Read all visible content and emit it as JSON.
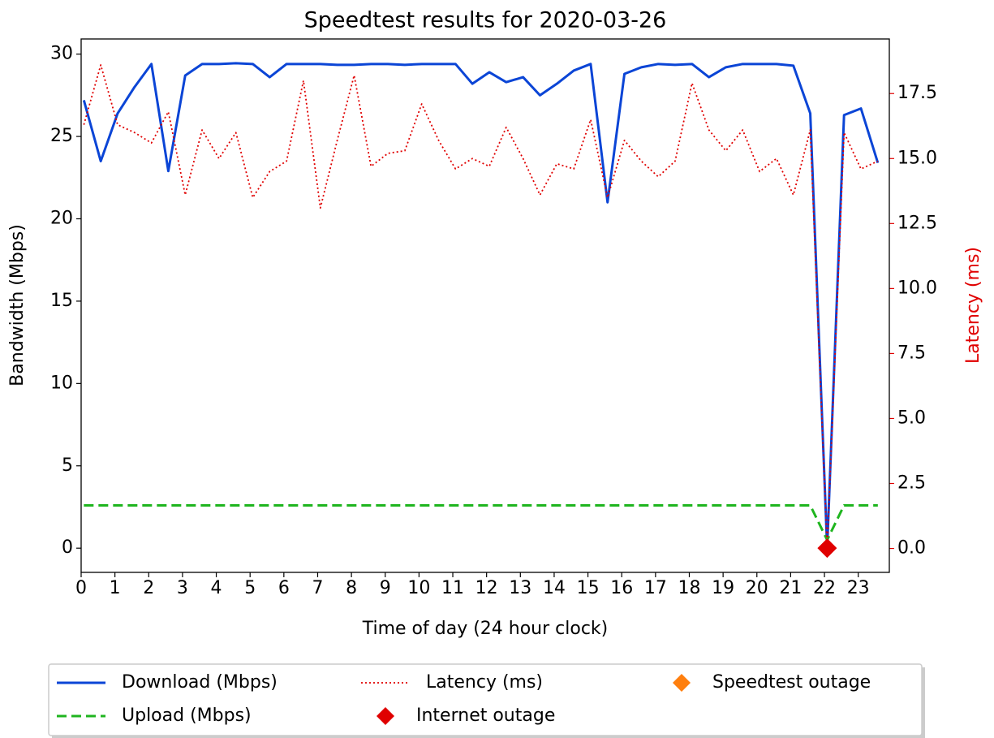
{
  "chart_data": {
    "type": "line",
    "title": "Speedtest results for 2020-03-26",
    "x_label": "Time of day (24 hour clock)",
    "y_label": "Bandwidth (Mbps)",
    "y2_label": "Latency (ms)",
    "y2_color": "#e00000",
    "x": [
      0.08,
      0.58,
      1.08,
      1.58,
      2.08,
      2.58,
      3.08,
      3.58,
      4.08,
      4.58,
      5.08,
      5.58,
      6.08,
      6.58,
      7.08,
      7.58,
      8.08,
      8.58,
      9.08,
      9.58,
      10.08,
      10.58,
      11.08,
      11.58,
      12.08,
      12.58,
      13.08,
      13.58,
      14.08,
      14.58,
      15.08,
      15.58,
      16.08,
      16.58,
      17.08,
      17.58,
      18.08,
      18.58,
      19.08,
      19.58,
      20.08,
      20.58,
      21.08,
      21.58,
      22.08,
      22.58,
      23.08,
      23.58
    ],
    "series": [
      {
        "name": "Download (Mbps)",
        "color": "#0b45d6",
        "linestyle": "solid",
        "values": [
          27.2,
          23.5,
          26.4,
          28.0,
          29.4,
          22.9,
          28.7,
          29.4,
          29.4,
          29.45,
          29.4,
          28.6,
          29.4,
          29.4,
          29.4,
          29.35,
          29.35,
          29.4,
          29.4,
          29.35,
          29.4,
          29.4,
          29.4,
          28.2,
          28.9,
          28.3,
          28.6,
          27.5,
          28.2,
          29.0,
          29.4,
          21.0,
          28.8,
          29.2,
          29.4,
          29.35,
          29.4,
          28.6,
          29.2,
          29.4,
          29.4,
          29.4,
          29.3,
          26.4,
          0,
          26.3,
          26.7,
          23.4
        ]
      },
      {
        "name": "Upload (Mbps)",
        "color": "#1fb51f",
        "linestyle": "dashed",
        "values": [
          2.6,
          2.6,
          2.6,
          2.6,
          2.6,
          2.6,
          2.6,
          2.6,
          2.6,
          2.6,
          2.6,
          2.6,
          2.6,
          2.6,
          2.6,
          2.6,
          2.6,
          2.6,
          2.6,
          2.6,
          2.6,
          2.6,
          2.6,
          2.6,
          2.6,
          2.6,
          2.6,
          2.6,
          2.6,
          2.6,
          2.6,
          2.6,
          2.6,
          2.6,
          2.6,
          2.6,
          2.6,
          2.6,
          2.6,
          2.6,
          2.6,
          2.6,
          2.6,
          2.6,
          0.5,
          2.6,
          2.6,
          2.6
        ]
      },
      {
        "name": "Latency (ms)",
        "color": "#e00000",
        "linestyle": "dotted",
        "axis": "y2",
        "values": [
          16.3,
          18.6,
          16.3,
          16.0,
          15.6,
          16.8,
          13.6,
          16.1,
          15.0,
          16.0,
          13.5,
          14.5,
          14.9,
          18.0,
          13.1,
          15.7,
          18.2,
          14.7,
          15.2,
          15.3,
          17.1,
          15.7,
          14.6,
          15.0,
          14.7,
          16.2,
          15.0,
          13.6,
          14.8,
          14.6,
          16.5,
          13.5,
          15.7,
          14.9,
          14.3,
          14.9,
          17.9,
          16.1,
          15.3,
          16.1,
          14.5,
          15.0,
          13.6,
          16.1,
          0,
          16.0,
          14.6,
          14.9
        ]
      },
      {
        "name": "Internet outage",
        "color": "#e00000",
        "marker": "diamond",
        "x": [
          22.08
        ],
        "values": [
          0
        ]
      },
      {
        "name": "Speedtest outage",
        "color": "#ff7f0e",
        "marker": "diamond",
        "x": [],
        "values": []
      }
    ],
    "xlim": [
      0,
      23.92
    ],
    "xticks": [
      0,
      1,
      2,
      3,
      4,
      5,
      6,
      7,
      8,
      9,
      10,
      11,
      12,
      13,
      14,
      15,
      16,
      17,
      18,
      19,
      20,
      21,
      22,
      23
    ],
    "ylim": [
      -1.47,
      30.92
    ],
    "yticks": [
      0,
      5,
      10,
      15,
      20,
      25,
      30
    ],
    "y2lim": [
      -0.92,
      19.6
    ],
    "y2ticks": [
      {
        "value": 0,
        "label": "0.0"
      },
      {
        "value": 2.5,
        "label": "2.5"
      },
      {
        "value": 5,
        "label": "5.0"
      },
      {
        "value": 7.5,
        "label": "7.5"
      },
      {
        "value": 10,
        "label": "10.0"
      },
      {
        "value": 12.5,
        "label": "12.5"
      },
      {
        "value": 15,
        "label": "15.0"
      },
      {
        "value": 17.5,
        "label": "17.5"
      }
    ],
    "legend": "bottom"
  }
}
